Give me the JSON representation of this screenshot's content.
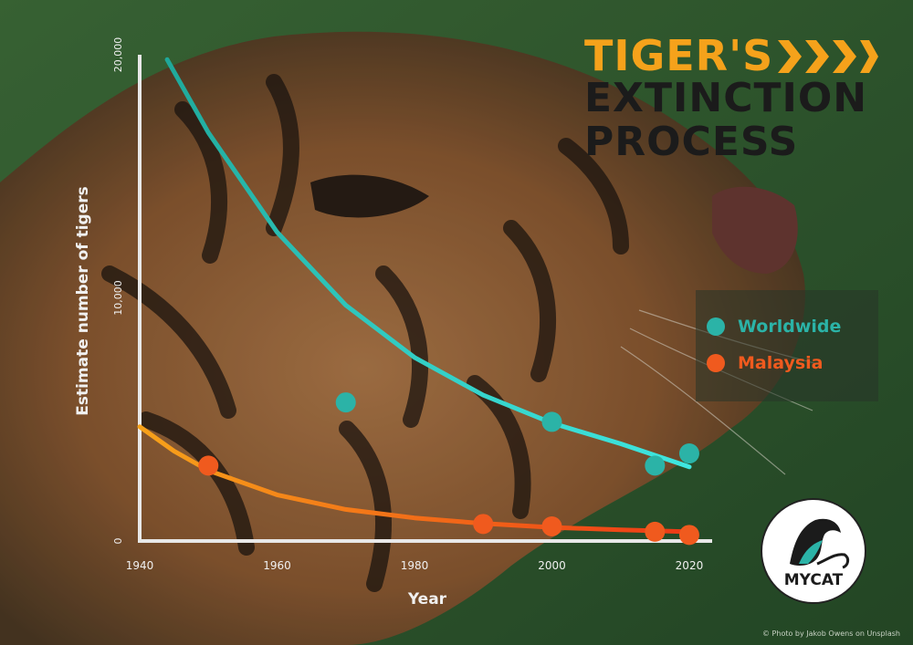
{
  "title": {
    "line1": "TIGER'S",
    "line2": "EXTINCTION",
    "line3": "PROCESS"
  },
  "logo": {
    "text": "MYCAT"
  },
  "credit": "© Photo by Jakob Owens on Unsplash",
  "colors": {
    "worldwide": "#2bb3a7",
    "malaysia": "#f05a1e",
    "title_orange": "#f5a21b",
    "title_dark": "#1b1b1b",
    "axis": "#e8e8e8"
  },
  "chart_data": {
    "type": "scatter",
    "title": "",
    "xlabel": "Year",
    "ylabel": "Estimate number of tigers",
    "xlim": [
      1940,
      2022
    ],
    "ylim": [
      0,
      20000
    ],
    "x_ticks": [
      "1940",
      "1960",
      "1980",
      "2000",
      "2020"
    ],
    "y_ticks": [
      "0",
      "10,000",
      "20,000"
    ],
    "grid": false,
    "legend_position": "right",
    "series": [
      {
        "name": "Worldwide",
        "points": [
          [
            1970,
            5700
          ],
          [
            2000,
            4900
          ],
          [
            2015,
            3100
          ],
          [
            2020,
            3600
          ]
        ],
        "trend": [
          [
            1944,
            19800
          ],
          [
            1950,
            16800
          ],
          [
            1960,
            12700
          ],
          [
            1970,
            9700
          ],
          [
            1980,
            7550
          ],
          [
            1990,
            6000
          ],
          [
            2000,
            4850
          ],
          [
            2010,
            4000
          ],
          [
            2020,
            3050
          ]
        ]
      },
      {
        "name": "Malaysia",
        "points": [
          [
            1950,
            3100
          ],
          [
            1990,
            700
          ],
          [
            2000,
            600
          ],
          [
            2015,
            380
          ],
          [
            2020,
            250
          ]
        ],
        "trend": [
          [
            1940,
            4700
          ],
          [
            1945,
            3700
          ],
          [
            1950,
            2900
          ],
          [
            1960,
            1900
          ],
          [
            1970,
            1300
          ],
          [
            1980,
            950
          ],
          [
            1990,
            720
          ],
          [
            2000,
            560
          ],
          [
            2010,
            460
          ],
          [
            2020,
            380
          ]
        ]
      }
    ]
  }
}
